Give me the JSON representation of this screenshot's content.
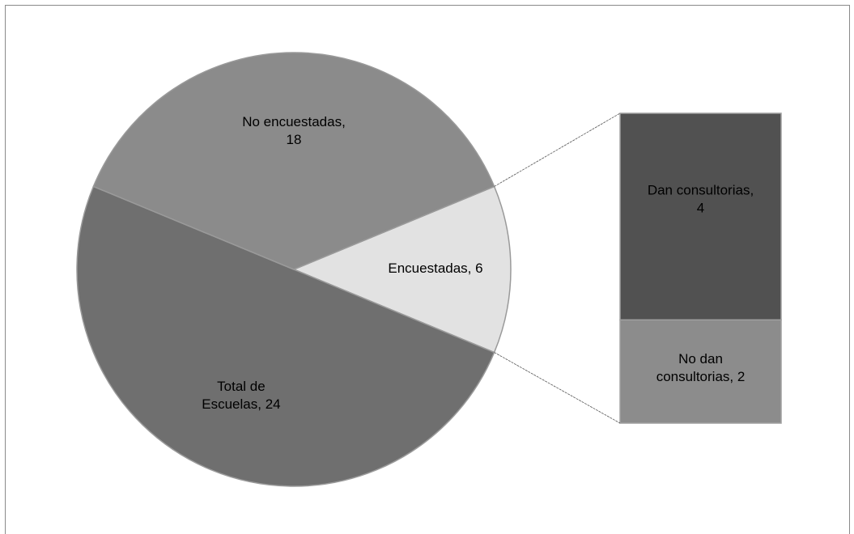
{
  "chart_data": {
    "type": "bar-of-pie",
    "categories": [
      "Encuestadas",
      "Total de Escuelas",
      "No encuestadas"
    ],
    "values": [
      6,
      24,
      18
    ],
    "value_labels": [
      "Encuestadas, 6",
      "Total de\nEscuelas, 24",
      "No encuestadas,\n18"
    ],
    "colors": [
      "#e2e2e2",
      "#6f6f6f",
      "#8b8b8b"
    ],
    "bar": {
      "categories": [
        "No dan consultorias",
        "Dan consultorias"
      ],
      "values": [
        2,
        4
      ],
      "value_labels": [
        "No dan\nconsultorias, 2",
        "Dan consultorias,\n4"
      ],
      "colors": [
        "#8c8c8c",
        "#515151"
      ]
    }
  }
}
